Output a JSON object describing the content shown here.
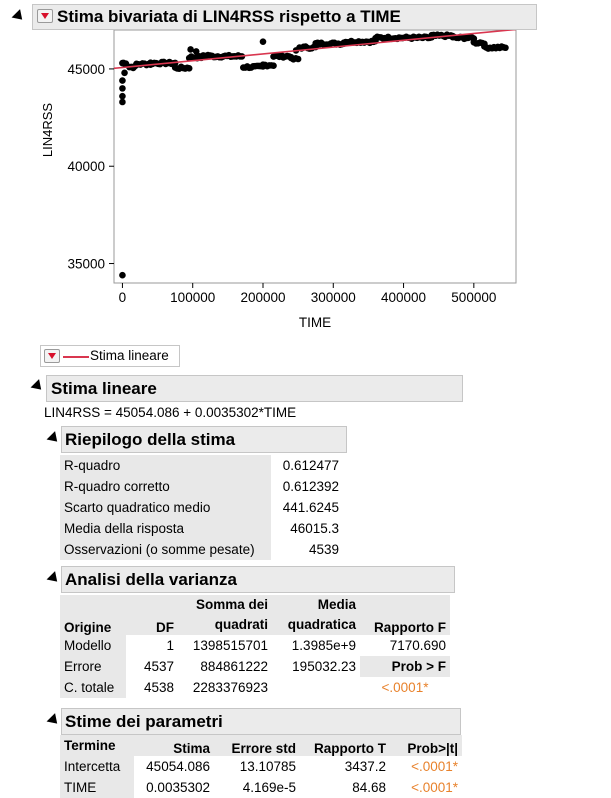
{
  "report": {
    "title": "Stima bivariata di LIN4RSS rispetto a TIME"
  },
  "chart_data": {
    "type": "scatter",
    "xlabel": "TIME",
    "ylabel": "LIN4RSS",
    "xlim": [
      -12000,
      560000
    ],
    "ylim": [
      34000,
      47000
    ],
    "xticks": [
      0,
      100000,
      200000,
      300000,
      400000,
      500000
    ],
    "yticks": [
      35000,
      40000,
      45000
    ],
    "x_tick_labels": [
      "0",
      "100000",
      "200000",
      "300000",
      "400000",
      "500000"
    ],
    "y_tick_labels": [
      "35000",
      "40000",
      "45000"
    ],
    "fit": {
      "intercept": 45054.086,
      "slope": 0.0035302,
      "color": "#d9364f"
    },
    "point_color": "#000000",
    "clusters": [
      {
        "x0": 0,
        "x1": 5000,
        "y": 45300
      },
      {
        "x0": 10000,
        "x1": 18000,
        "y": 45100
      },
      {
        "x0": 20000,
        "x1": 40000,
        "y": 45250
      },
      {
        "x0": 40000,
        "x1": 75000,
        "y": 45300
      },
      {
        "x0": 75000,
        "x1": 95000,
        "y": 45050
      },
      {
        "x0": 95000,
        "x1": 115000,
        "y": 45600
      },
      {
        "x0": 115000,
        "x1": 125000,
        "y": 45700
      },
      {
        "x0": 125000,
        "x1": 170000,
        "y": 45650
      },
      {
        "x0": 172000,
        "x1": 200000,
        "y": 45100
      },
      {
        "x0": 200000,
        "x1": 215000,
        "y": 45200
      },
      {
        "x0": 215000,
        "x1": 240000,
        "y": 45650
      },
      {
        "x0": 240000,
        "x1": 250000,
        "y": 45500
      },
      {
        "x0": 252000,
        "x1": 275000,
        "y": 46100
      },
      {
        "x0": 275000,
        "x1": 315000,
        "y": 46300
      },
      {
        "x0": 315000,
        "x1": 360000,
        "y": 46400
      },
      {
        "x0": 360000,
        "x1": 440000,
        "y": 46600
      },
      {
        "x0": 440000,
        "x1": 470000,
        "y": 46700
      },
      {
        "x0": 470000,
        "x1": 500000,
        "y": 46600
      },
      {
        "x0": 500000,
        "x1": 515000,
        "y": 46350
      },
      {
        "x0": 515000,
        "x1": 545000,
        "y": 46100
      }
    ],
    "outliers": [
      {
        "x": 0,
        "y": 34400
      },
      {
        "x": 0,
        "y": 43300
      },
      {
        "x": 0,
        "y": 43600
      },
      {
        "x": 0,
        "y": 44000
      },
      {
        "x": 0,
        "y": 44400
      },
      {
        "x": 3000,
        "y": 44800
      },
      {
        "x": 97000,
        "y": 46000
      },
      {
        "x": 105000,
        "y": 45900
      },
      {
        "x": 200000,
        "y": 46400
      },
      {
        "x": 247000,
        "y": 45950
      }
    ]
  },
  "legend": {
    "label": "Stima lineare",
    "line_color": "#d9364f"
  },
  "fit_section": {
    "title": "Stima lineare",
    "equation": "LIN4RSS = 45054.086 + 0.0035302*TIME"
  },
  "summary": {
    "title": "Riepilogo della stima",
    "rows": [
      {
        "label": "R-quadro",
        "value": "0.612477"
      },
      {
        "label": "R-quadro corretto",
        "value": "0.612392"
      },
      {
        "label": "Scarto quadratico medio",
        "value": "441.6245"
      },
      {
        "label": "Media della risposta",
        "value": "46015.3"
      },
      {
        "label": "Osservazioni (o somme pesate)",
        "value": "4539"
      }
    ]
  },
  "anova": {
    "title": "Analisi della varianza",
    "headers": {
      "origine": "Origine",
      "df": "DF",
      "ss_1": "Somma dei",
      "ss_2": "quadrati",
      "ms_1": "Media",
      "ms_2": "quadratica",
      "f": "Rapporto F"
    },
    "rows": [
      {
        "origine": "Modello",
        "df": "1",
        "ss": "1398515701",
        "ms": "1.3985e+9",
        "f": "7170.690"
      },
      {
        "origine": "Errore",
        "df": "4537",
        "ss": "884861222",
        "ms": "195032.23",
        "f": "Prob > F"
      },
      {
        "origine": "C. totale",
        "df": "4538",
        "ss": "2283376923",
        "ms": "",
        "f": "<.0001*"
      }
    ]
  },
  "params": {
    "title": "Stime dei parametri",
    "headers": {
      "termine": "Termine",
      "stima": "Stima",
      "errore": "Errore std",
      "t": "Rapporto T",
      "p": "Prob>|t|"
    },
    "rows": [
      {
        "termine": "Intercetta",
        "stima": "45054.086",
        "errore": "13.10785",
        "t": "3437.2",
        "p": "<.0001*"
      },
      {
        "termine": "TIME",
        "stima": "0.0035302",
        "errore": "4.169e-5",
        "t": "84.68",
        "p": "<.0001*"
      }
    ]
  }
}
